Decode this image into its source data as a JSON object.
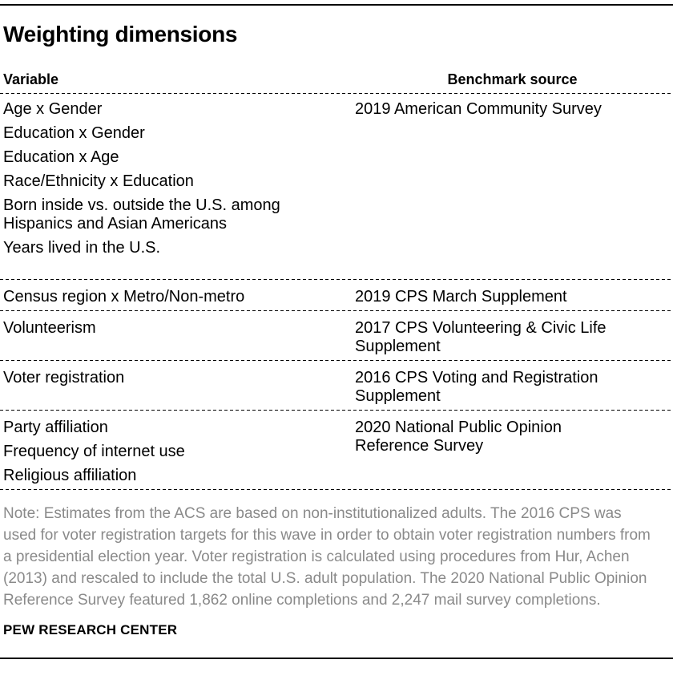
{
  "title": "Weighting dimensions",
  "table": {
    "header": {
      "variable": "Variable",
      "source": "Benchmark source"
    },
    "groups": [
      {
        "variables": [
          "Age x Gender",
          "Education x Gender",
          "Education x Age",
          "Race/Ethnicity x Education",
          "Born inside vs. outside the U.S. among\nHispanics and Asian Americans",
          "Years lived in the U.S."
        ],
        "source": "2019 American Community Survey"
      },
      {
        "variables": [
          "Census region x Metro/Non-metro"
        ],
        "source": "2019 CPS March Supplement"
      },
      {
        "variables": [
          "Volunteerism"
        ],
        "source": "2017 CPS Volunteering & Civic Life\nSupplement"
      },
      {
        "variables": [
          "Voter registration"
        ],
        "source": "2016 CPS Voting and Registration\nSupplement"
      },
      {
        "variables": [
          "Party affiliation",
          "Frequency of internet use",
          "Religious affiliation"
        ],
        "source": "2020 National Public Opinion\nReference Survey"
      }
    ]
  },
  "note": "Note: Estimates from the ACS are based on non-institutionalized adults.  The 2016 CPS was used for voter registration targets for this wave in order to obtain voter registration numbers from a presidential election year. Voter registration is calculated using procedures from Hur, Achen (2013) and rescaled to include the total U.S. adult population. The 2020 National Public Opinion Reference Survey featured 1,862 online completions and 2,247 mail survey completions.",
  "footer": "PEW RESEARCH CENTER",
  "colors": {
    "text": "#000000",
    "note_gray": "#8a8a8a",
    "rule": "#000000"
  }
}
